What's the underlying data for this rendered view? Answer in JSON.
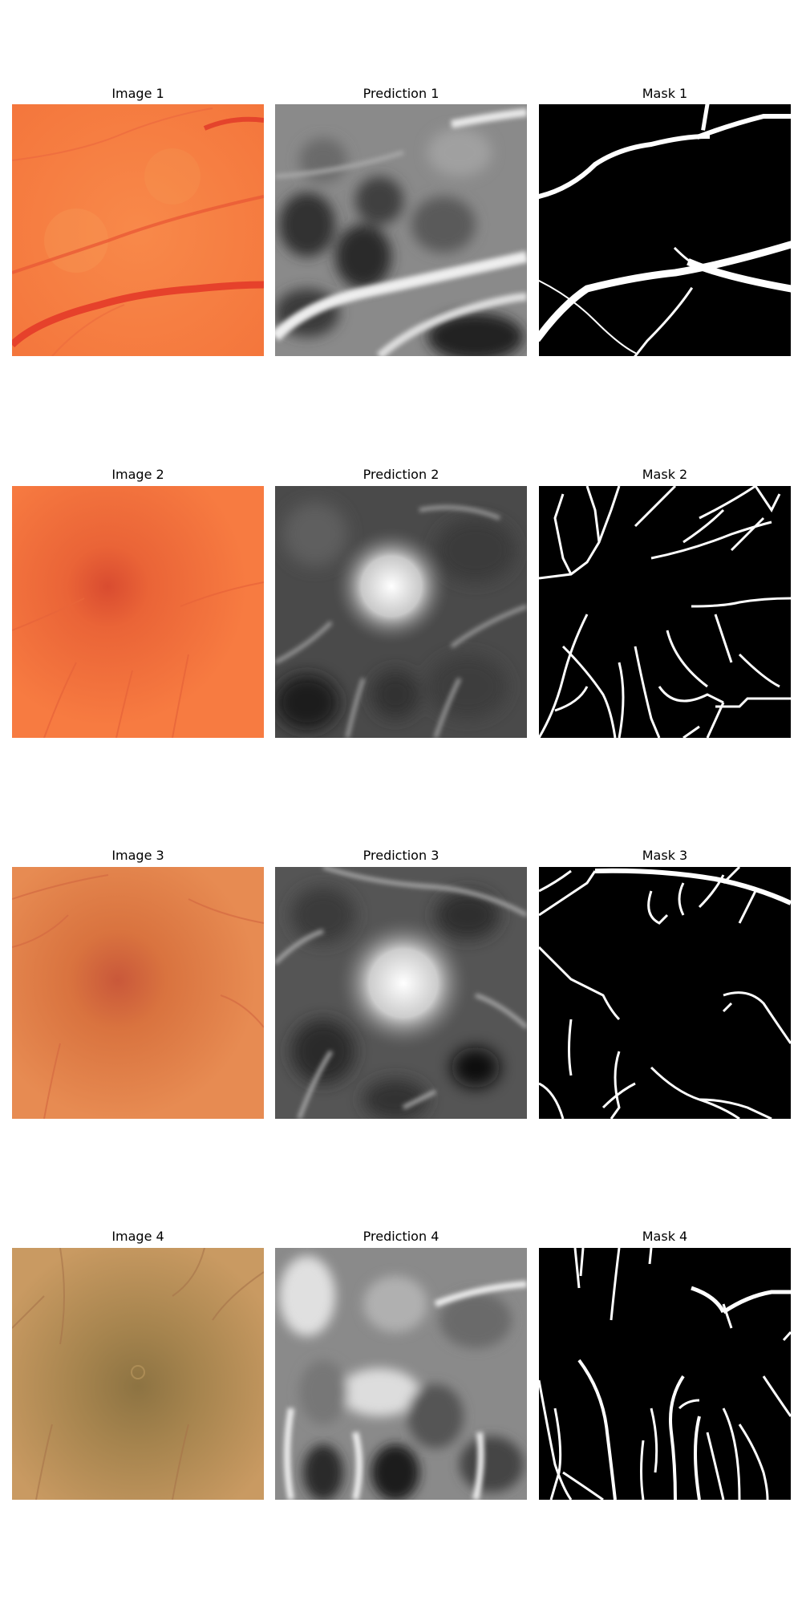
{
  "rows": [
    {
      "image_title": "Image 1",
      "prediction_title": "Prediction 1",
      "mask_title": "Mask 1",
      "fundus_color": "#f57a3f",
      "vessel_color": "#e8432c"
    },
    {
      "image_title": "Image 2",
      "prediction_title": "Prediction 2",
      "mask_title": "Mask 2",
      "fundus_color": "#f77a40",
      "vessel_color": "#e86234"
    },
    {
      "image_title": "Image 3",
      "prediction_title": "Prediction 3",
      "mask_title": "Mask 3",
      "fundus_color": "#e6884f",
      "vessel_color": "#d06a3f"
    },
    {
      "image_title": "Image 4",
      "prediction_title": "Prediction 4",
      "mask_title": "Mask 4",
      "fundus_color": "#c8955c",
      "vessel_color": "#b27a4c"
    }
  ]
}
